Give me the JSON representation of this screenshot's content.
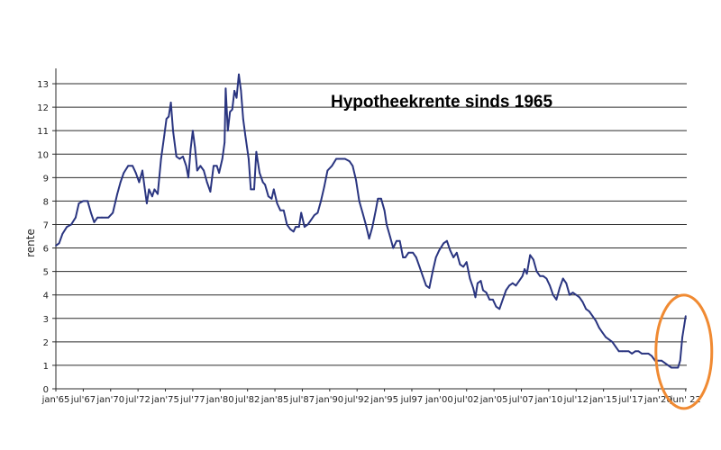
{
  "chart_data": {
    "type": "line",
    "title": "Hypotheekrente sinds 1965",
    "xlabel": "",
    "ylabel": "rente",
    "ylim": [
      0,
      13.5
    ],
    "yticks": [
      0,
      1,
      2,
      3,
      4,
      5,
      6,
      7,
      8,
      9,
      10,
      11,
      12,
      13
    ],
    "xlim": [
      1965.0,
      2022.6
    ],
    "xticks": [
      {
        "label": "jan'65",
        "x": 1965.0
      },
      {
        "label": "jul'67",
        "x": 1967.5
      },
      {
        "label": "jan'70",
        "x": 1970.0
      },
      {
        "label": "jul'72",
        "x": 1972.5
      },
      {
        "label": "jan'75",
        "x": 1975.0
      },
      {
        "label": "jul'77",
        "x": 1977.5
      },
      {
        "label": "jan'80",
        "x": 1980.0
      },
      {
        "label": "jul'82",
        "x": 1982.5
      },
      {
        "label": "jan'85",
        "x": 1985.0
      },
      {
        "label": "jul'87",
        "x": 1987.5
      },
      {
        "label": "jan'90",
        "x": 1990.0
      },
      {
        "label": "jul'92",
        "x": 1992.5
      },
      {
        "label": "jan'95",
        "x": 1995.0
      },
      {
        "label": "jul97",
        "x": 1997.5
      },
      {
        "label": "jan'00",
        "x": 2000.0
      },
      {
        "label": "jul'02",
        "x": 2002.5
      },
      {
        "label": "jan'05",
        "x": 2005.0
      },
      {
        "label": "jul'07",
        "x": 2007.5
      },
      {
        "label": "jan'10",
        "x": 2010.0
      },
      {
        "label": "jul'12",
        "x": 2012.5
      },
      {
        "label": "jan'15",
        "x": 2015.0
      },
      {
        "label": "jul'17",
        "x": 2017.5
      },
      {
        "label": "jan'20",
        "x": 2020.0
      },
      {
        "label": "jun' 22",
        "x": 2022.5
      }
    ],
    "grid": "horizontal",
    "highlight": {
      "type": "ellipse",
      "around": "last values",
      "color": "#f08a32"
    },
    "series": [
      {
        "color": "#2a3580",
        "points": [
          [
            1965.0,
            6.1
          ],
          [
            1965.3,
            6.2
          ],
          [
            1965.6,
            6.6
          ],
          [
            1966.0,
            6.9
          ],
          [
            1966.4,
            7.0
          ],
          [
            1966.8,
            7.3
          ],
          [
            1967.1,
            7.9
          ],
          [
            1967.5,
            8.0
          ],
          [
            1967.9,
            8.0
          ],
          [
            1968.2,
            7.5
          ],
          [
            1968.5,
            7.1
          ],
          [
            1968.8,
            7.3
          ],
          [
            1969.2,
            7.3
          ],
          [
            1969.8,
            7.3
          ],
          [
            1970.2,
            7.5
          ],
          [
            1970.6,
            8.3
          ],
          [
            1970.9,
            8.8
          ],
          [
            1971.2,
            9.2
          ],
          [
            1971.6,
            9.5
          ],
          [
            1972.0,
            9.5
          ],
          [
            1972.3,
            9.2
          ],
          [
            1972.6,
            8.8
          ],
          [
            1972.9,
            9.3
          ],
          [
            1973.1,
            8.6
          ],
          [
            1973.3,
            7.9
          ],
          [
            1973.5,
            8.5
          ],
          [
            1973.8,
            8.2
          ],
          [
            1974.0,
            8.5
          ],
          [
            1974.3,
            8.3
          ],
          [
            1974.6,
            9.8
          ],
          [
            1974.9,
            10.8
          ],
          [
            1975.1,
            11.5
          ],
          [
            1975.3,
            11.6
          ],
          [
            1975.5,
            12.2
          ],
          [
            1975.7,
            11.0
          ],
          [
            1976.0,
            9.9
          ],
          [
            1976.3,
            9.8
          ],
          [
            1976.6,
            9.9
          ],
          [
            1976.9,
            9.5
          ],
          [
            1977.1,
            9.0
          ],
          [
            1977.3,
            10.2
          ],
          [
            1977.5,
            11.0
          ],
          [
            1977.7,
            10.3
          ],
          [
            1977.9,
            9.3
          ],
          [
            1978.2,
            9.5
          ],
          [
            1978.5,
            9.3
          ],
          [
            1978.8,
            8.8
          ],
          [
            1979.1,
            8.4
          ],
          [
            1979.4,
            9.5
          ],
          [
            1979.7,
            9.5
          ],
          [
            1979.9,
            9.2
          ],
          [
            1980.2,
            9.8
          ],
          [
            1980.4,
            10.5
          ],
          [
            1980.5,
            12.8
          ],
          [
            1980.7,
            11.0
          ],
          [
            1980.9,
            11.8
          ],
          [
            1981.1,
            11.9
          ],
          [
            1981.3,
            12.7
          ],
          [
            1981.5,
            12.4
          ],
          [
            1981.7,
            13.4
          ],
          [
            1981.9,
            12.7
          ],
          [
            1982.1,
            11.5
          ],
          [
            1982.3,
            10.8
          ],
          [
            1982.6,
            9.8
          ],
          [
            1982.8,
            8.5
          ],
          [
            1983.1,
            8.5
          ],
          [
            1983.3,
            10.1
          ],
          [
            1983.6,
            9.2
          ],
          [
            1983.9,
            8.8
          ],
          [
            1984.1,
            8.7
          ],
          [
            1984.4,
            8.2
          ],
          [
            1984.7,
            8.1
          ],
          [
            1984.9,
            8.5
          ],
          [
            1985.2,
            7.9
          ],
          [
            1985.5,
            7.6
          ],
          [
            1985.8,
            7.6
          ],
          [
            1986.1,
            7.0
          ],
          [
            1986.4,
            6.8
          ],
          [
            1986.7,
            6.7
          ],
          [
            1986.9,
            6.9
          ],
          [
            1987.2,
            6.9
          ],
          [
            1987.4,
            7.5
          ],
          [
            1987.7,
            6.9
          ],
          [
            1988.0,
            7.0
          ],
          [
            1988.3,
            7.2
          ],
          [
            1988.6,
            7.4
          ],
          [
            1988.9,
            7.5
          ],
          [
            1989.2,
            8.0
          ],
          [
            1989.5,
            8.6
          ],
          [
            1989.8,
            9.3
          ],
          [
            1990.2,
            9.5
          ],
          [
            1990.6,
            9.8
          ],
          [
            1991.0,
            9.8
          ],
          [
            1991.4,
            9.8
          ],
          [
            1991.8,
            9.7
          ],
          [
            1992.1,
            9.5
          ],
          [
            1992.4,
            8.9
          ],
          [
            1992.7,
            8.0
          ],
          [
            1993.0,
            7.5
          ],
          [
            1993.3,
            7.0
          ],
          [
            1993.6,
            6.4
          ],
          [
            1993.9,
            6.9
          ],
          [
            1994.2,
            7.6
          ],
          [
            1994.4,
            8.1
          ],
          [
            1994.7,
            8.1
          ],
          [
            1995.0,
            7.6
          ],
          [
            1995.2,
            7.0
          ],
          [
            1995.5,
            6.5
          ],
          [
            1995.8,
            6.0
          ],
          [
            1996.1,
            6.3
          ],
          [
            1996.4,
            6.3
          ],
          [
            1996.7,
            5.6
          ],
          [
            1996.9,
            5.6
          ],
          [
            1997.2,
            5.8
          ],
          [
            1997.6,
            5.8
          ],
          [
            1997.9,
            5.6
          ],
          [
            1998.2,
            5.2
          ],
          [
            1998.5,
            4.8
          ],
          [
            1998.8,
            4.4
          ],
          [
            1999.1,
            4.3
          ],
          [
            1999.4,
            5.0
          ],
          [
            1999.7,
            5.6
          ],
          [
            2000.0,
            5.9
          ],
          [
            2000.4,
            6.2
          ],
          [
            2000.7,
            6.3
          ],
          [
            2001.0,
            5.9
          ],
          [
            2001.3,
            5.6
          ],
          [
            2001.6,
            5.8
          ],
          [
            2001.9,
            5.3
          ],
          [
            2002.2,
            5.2
          ],
          [
            2002.5,
            5.4
          ],
          [
            2002.8,
            4.7
          ],
          [
            2003.1,
            4.3
          ],
          [
            2003.3,
            3.9
          ],
          [
            2003.5,
            4.5
          ],
          [
            2003.8,
            4.6
          ],
          [
            2004.0,
            4.2
          ],
          [
            2004.3,
            4.1
          ],
          [
            2004.6,
            3.8
          ],
          [
            2004.9,
            3.8
          ],
          [
            2005.2,
            3.5
          ],
          [
            2005.5,
            3.4
          ],
          [
            2005.8,
            3.8
          ],
          [
            2006.1,
            4.2
          ],
          [
            2006.4,
            4.4
          ],
          [
            2006.7,
            4.5
          ],
          [
            2007.0,
            4.4
          ],
          [
            2007.3,
            4.6
          ],
          [
            2007.6,
            4.8
          ],
          [
            2007.8,
            5.1
          ],
          [
            2008.0,
            4.9
          ],
          [
            2008.3,
            5.7
          ],
          [
            2008.6,
            5.5
          ],
          [
            2008.9,
            5.0
          ],
          [
            2009.2,
            4.8
          ],
          [
            2009.5,
            4.8
          ],
          [
            2009.8,
            4.7
          ],
          [
            2010.1,
            4.4
          ],
          [
            2010.4,
            4.0
          ],
          [
            2010.7,
            3.8
          ],
          [
            2011.0,
            4.3
          ],
          [
            2011.3,
            4.7
          ],
          [
            2011.6,
            4.5
          ],
          [
            2011.9,
            4.0
          ],
          [
            2012.2,
            4.1
          ],
          [
            2012.5,
            4.0
          ],
          [
            2012.8,
            3.9
          ],
          [
            2013.1,
            3.7
          ],
          [
            2013.4,
            3.4
          ],
          [
            2013.7,
            3.3
          ],
          [
            2014.0,
            3.1
          ],
          [
            2014.3,
            2.9
          ],
          [
            2014.6,
            2.6
          ],
          [
            2014.9,
            2.4
          ],
          [
            2015.2,
            2.2
          ],
          [
            2015.5,
            2.1
          ],
          [
            2015.8,
            2.0
          ],
          [
            2016.1,
            1.8
          ],
          [
            2016.4,
            1.6
          ],
          [
            2016.7,
            1.6
          ],
          [
            2017.0,
            1.6
          ],
          [
            2017.3,
            1.6
          ],
          [
            2017.6,
            1.5
          ],
          [
            2017.9,
            1.6
          ],
          [
            2018.2,
            1.6
          ],
          [
            2018.5,
            1.5
          ],
          [
            2018.8,
            1.5
          ],
          [
            2019.1,
            1.5
          ],
          [
            2019.4,
            1.4
          ],
          [
            2019.7,
            1.2
          ],
          [
            2020.0,
            1.2
          ],
          [
            2020.3,
            1.2
          ],
          [
            2020.6,
            1.1
          ],
          [
            2020.9,
            1.0
          ],
          [
            2021.2,
            0.9
          ],
          [
            2021.5,
            0.9
          ],
          [
            2021.8,
            0.9
          ],
          [
            2022.0,
            1.2
          ],
          [
            2022.2,
            2.2
          ],
          [
            2022.4,
            2.8
          ],
          [
            2022.5,
            3.1
          ]
        ]
      }
    ]
  }
}
